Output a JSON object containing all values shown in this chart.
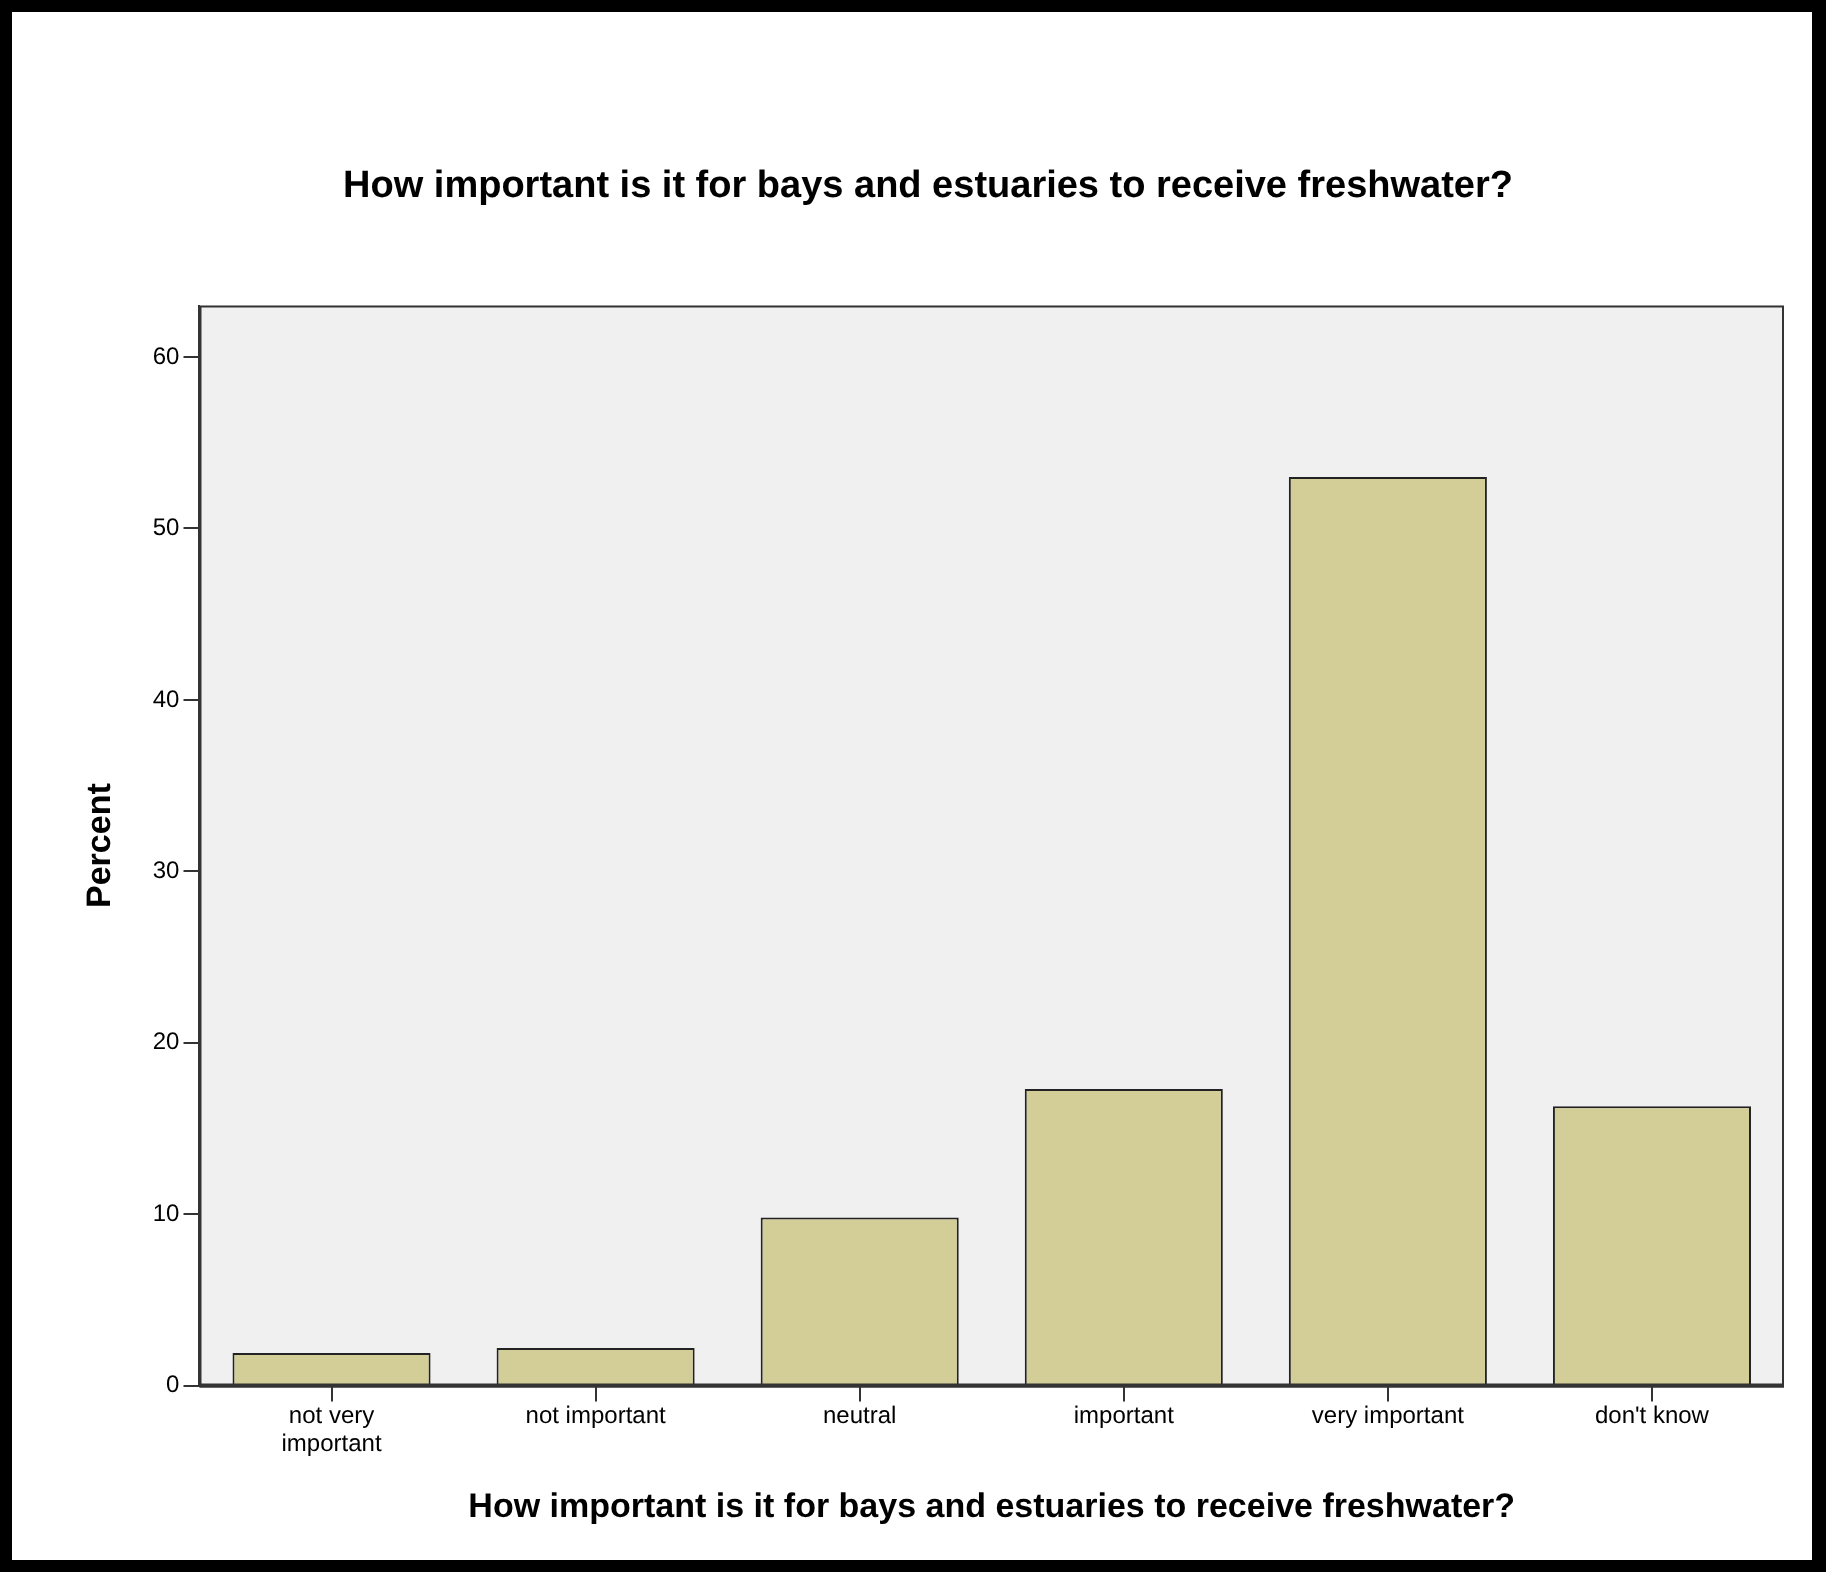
{
  "chart_data": {
    "type": "bar",
    "title": "How important is it for bays and estuaries to receive freshwater?",
    "xlabel": "How important is it for bays and estuaries to receive freshwater?",
    "ylabel": "Percent",
    "categories": [
      "not very important",
      "not important",
      "neutral",
      "important",
      "very important",
      "don't know"
    ],
    "values": [
      1.9,
      2.2,
      9.8,
      17.3,
      53.0,
      16.3
    ],
    "color": "#d3ce97",
    "ylim": [
      0,
      63
    ],
    "yticks": [
      0,
      10,
      20,
      30,
      40,
      50,
      60
    ],
    "grid": false
  }
}
